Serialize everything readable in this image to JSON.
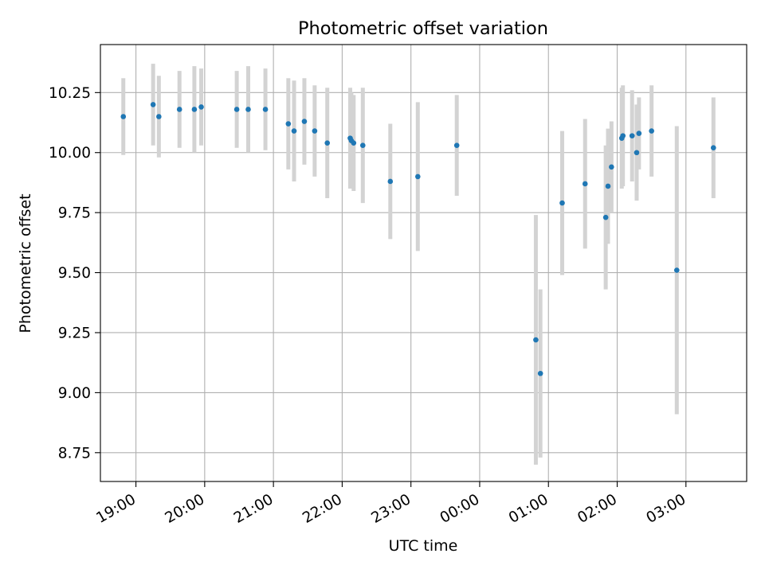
{
  "chart_data": {
    "type": "scatter",
    "title": "Photometric offset variation",
    "xlabel": "UTC time",
    "ylabel": "Photometric offset",
    "x_unit": "UTC time, 17 Jan 18:29 to 18 Jan 03:53",
    "xlim": [
      "18:29",
      "27:53"
    ],
    "ylim": [
      8.63,
      10.45
    ],
    "xticks": [
      {
        "t": "19:00",
        "label": "19:00"
      },
      {
        "t": "20:00",
        "label": "20:00"
      },
      {
        "t": "21:00",
        "label": "21:00"
      },
      {
        "t": "22:00",
        "label": "22:00"
      },
      {
        "t": "23:00",
        "label": "23:00"
      },
      {
        "t": "24:00",
        "label": "00:00"
      },
      {
        "t": "25:00",
        "label": "01:00"
      },
      {
        "t": "26:00",
        "label": "02:00"
      },
      {
        "t": "27:00",
        "label": "03:00"
      }
    ],
    "yticks": [
      {
        "v": 8.75,
        "label": "8.75"
      },
      {
        "v": 9.0,
        "label": "9.00"
      },
      {
        "v": 9.25,
        "label": "9.25"
      },
      {
        "v": 9.5,
        "label": "9.50"
      },
      {
        "v": 9.75,
        "label": "9.75"
      },
      {
        "v": 10.0,
        "label": "10.00"
      },
      {
        "v": 10.25,
        "label": "10.25"
      }
    ],
    "grid": true,
    "colors": {
      "point": "#1f77b4",
      "errorbar": "#d3d3d3",
      "grid": "#b0b0b0"
    },
    "series": [
      {
        "points": [
          {
            "x": "18:49",
            "y": 10.15,
            "err": 0.16
          },
          {
            "x": "19:15",
            "y": 10.2,
            "err": 0.17
          },
          {
            "x": "19:20",
            "y": 10.15,
            "err": 0.17
          },
          {
            "x": "19:38",
            "y": 10.18,
            "err": 0.16
          },
          {
            "x": "19:51",
            "y": 10.18,
            "err": 0.18
          },
          {
            "x": "19:57",
            "y": 10.19,
            "err": 0.16
          },
          {
            "x": "20:28",
            "y": 10.18,
            "err": 0.16
          },
          {
            "x": "20:38",
            "y": 10.18,
            "err": 0.18
          },
          {
            "x": "20:53",
            "y": 10.18,
            "err": 0.17
          },
          {
            "x": "21:13",
            "y": 10.12,
            "err": 0.19
          },
          {
            "x": "21:18",
            "y": 10.09,
            "err": 0.21
          },
          {
            "x": "21:27",
            "y": 10.13,
            "err": 0.18
          },
          {
            "x": "21:36",
            "y": 10.09,
            "err": 0.19
          },
          {
            "x": "21:47",
            "y": 10.04,
            "err": 0.23
          },
          {
            "x": "22:07",
            "y": 10.06,
            "err": 0.21
          },
          {
            "x": "22:08",
            "y": 10.05,
            "err": 0.2
          },
          {
            "x": "22:10",
            "y": 10.04,
            "err": 0.2
          },
          {
            "x": "22:18",
            "y": 10.03,
            "err": 0.24
          },
          {
            "x": "22:42",
            "y": 9.88,
            "err": 0.24
          },
          {
            "x": "23:06",
            "y": 9.9,
            "err": 0.31
          },
          {
            "x": "23:40",
            "y": 10.03,
            "err": 0.21
          },
          {
            "x": "24:49",
            "y": 9.22,
            "err": 0.52
          },
          {
            "x": "24:53",
            "y": 9.08,
            "err": 0.35
          },
          {
            "x": "25:12",
            "y": 9.79,
            "err": 0.3
          },
          {
            "x": "25:32",
            "y": 9.87,
            "err": 0.27
          },
          {
            "x": "25:50",
            "y": 9.73,
            "err": 0.3
          },
          {
            "x": "25:52",
            "y": 9.86,
            "err": 0.24
          },
          {
            "x": "25:55",
            "y": 9.94,
            "err": 0.19
          },
          {
            "x": "26:04",
            "y": 10.06,
            "err": 0.21
          },
          {
            "x": "26:05",
            "y": 10.07,
            "err": 0.21
          },
          {
            "x": "26:13",
            "y": 10.07,
            "err": 0.19
          },
          {
            "x": "26:17",
            "y": 10.0,
            "err": 0.2
          },
          {
            "x": "26:19",
            "y": 10.08,
            "err": 0.15
          },
          {
            "x": "26:30",
            "y": 10.09,
            "err": 0.19
          },
          {
            "x": "26:52",
            "y": 9.51,
            "err": 0.6
          },
          {
            "x": "27:24",
            "y": 10.02,
            "err": 0.21
          }
        ]
      }
    ]
  }
}
